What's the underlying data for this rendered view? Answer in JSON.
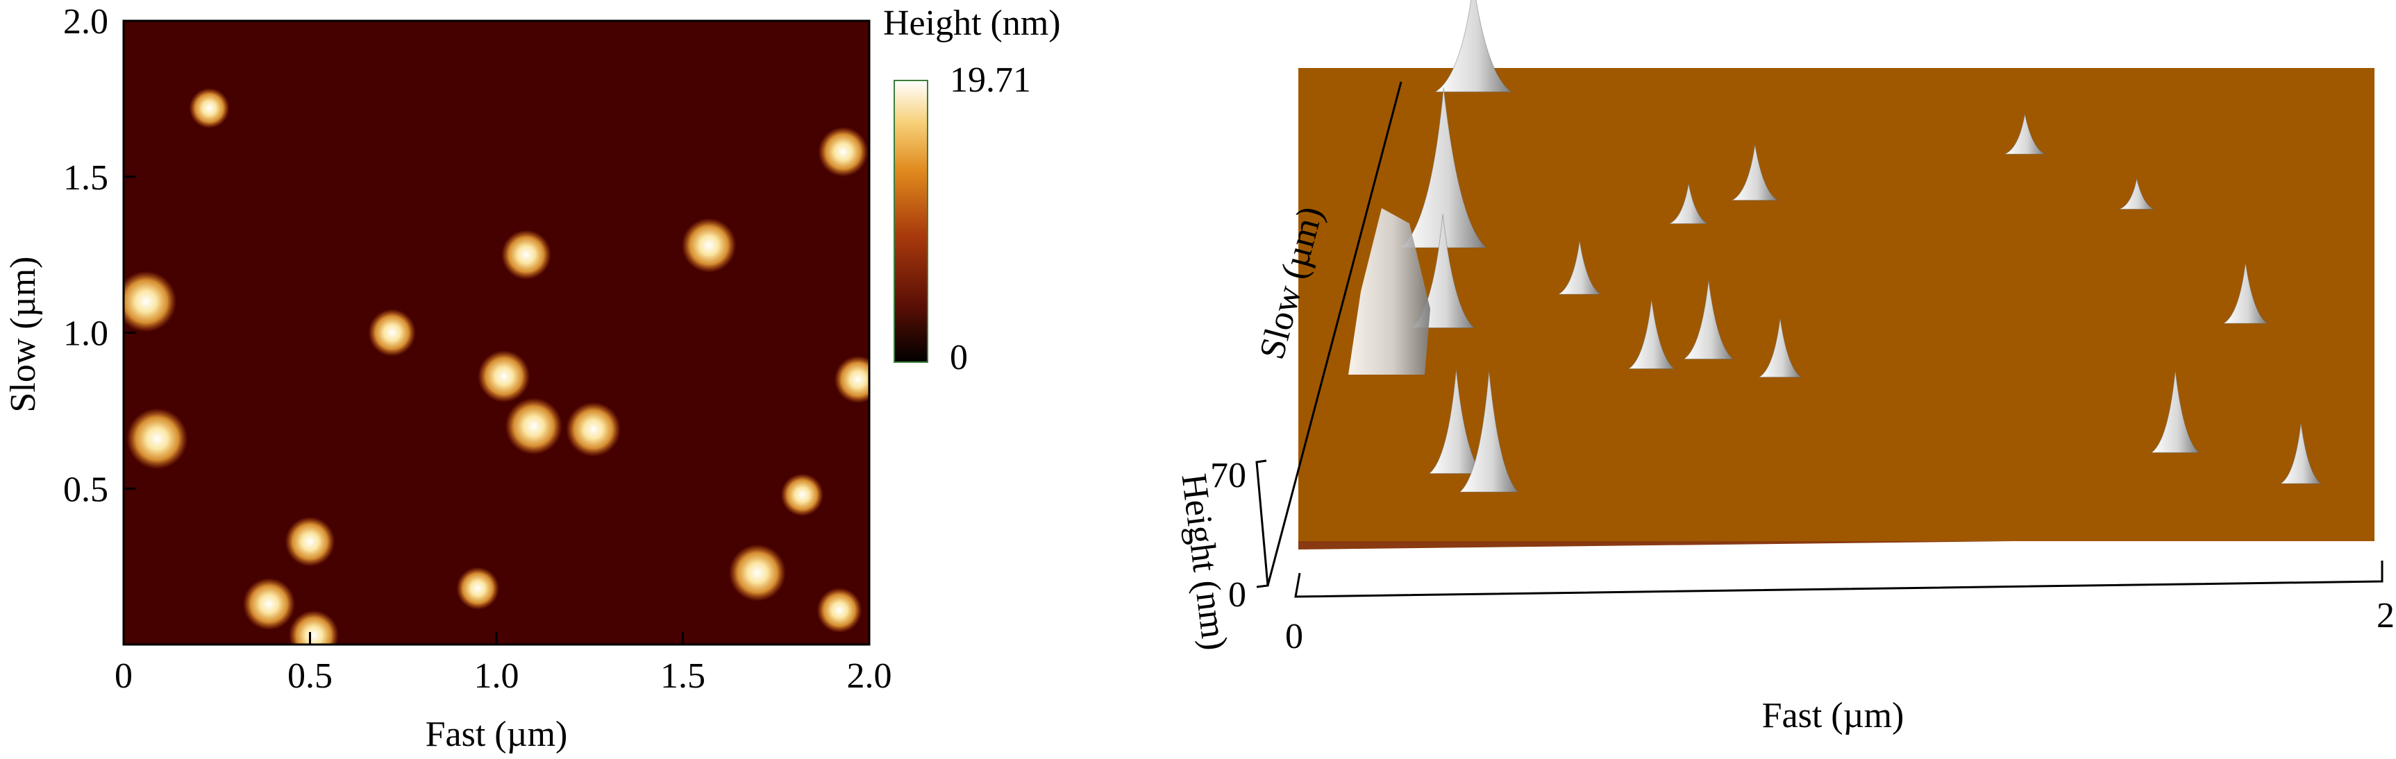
{
  "chart_data": [
    {
      "type": "heatmap",
      "xlabel": "Fast (µm)",
      "ylabel": "Slow (µm)",
      "xlim": [
        0,
        2.0
      ],
      "ylim": [
        0,
        2.0
      ],
      "x_ticks": [
        "0",
        "0.5",
        "1.0",
        "1.5",
        "2.0"
      ],
      "x_tick_values": [
        0,
        0.5,
        1.0,
        1.5,
        2.0
      ],
      "y_ticks": [
        "0.5",
        "1.0",
        "1.5",
        "2.0"
      ],
      "y_tick_values": [
        0.5,
        1.0,
        1.5,
        2.0
      ],
      "colorbar": {
        "label": "Height (nm)",
        "max": 19.71,
        "max_label": "19.71",
        "min": 0,
        "min_label": "0",
        "colors": [
          "#000000",
          "#5a0f05",
          "#a83a0c",
          "#e08a1e",
          "#f7d078",
          "#ffffff"
        ]
      },
      "features": [
        {
          "x": 0.06,
          "y": 1.1,
          "height": 19.7
        },
        {
          "x": 0.09,
          "y": 0.66,
          "height": 19.7
        },
        {
          "x": 1.57,
          "y": 1.28,
          "height": 17
        },
        {
          "x": 1.02,
          "y": 0.86,
          "height": 16
        },
        {
          "x": 1.1,
          "y": 0.7,
          "height": 18
        },
        {
          "x": 1.26,
          "y": 0.69,
          "height": 17
        },
        {
          "x": 1.7,
          "y": 0.23,
          "height": 18
        },
        {
          "x": 0.95,
          "y": 0.18,
          "height": 12
        },
        {
          "x": 0.5,
          "y": 0.33,
          "height": 15
        },
        {
          "x": 0.39,
          "y": 0.13,
          "height": 16
        },
        {
          "x": 0.72,
          "y": 1.0,
          "height": 14
        },
        {
          "x": 1.08,
          "y": 1.25,
          "height": 15
        },
        {
          "x": 1.93,
          "y": 1.58,
          "height": 15
        },
        {
          "x": 1.97,
          "y": 0.85,
          "height": 14
        },
        {
          "x": 1.82,
          "y": 0.48,
          "height": 12
        },
        {
          "x": 1.92,
          "y": 0.11,
          "height": 13
        },
        {
          "x": 0.51,
          "y": 0.03,
          "height": 15
        },
        {
          "x": 0.23,
          "y": 1.72,
          "height": 11
        }
      ]
    },
    {
      "type": "surface3d",
      "xlabel": "Fast (µm)",
      "zlabel": "Height (nm)",
      "depthlabel": "Slow (µm)",
      "x_ticks": [
        "0",
        "2"
      ],
      "xlim": [
        0,
        2
      ],
      "z_ticks": [
        "0",
        "70"
      ],
      "zlim": [
        0,
        70
      ],
      "peaks": [
        {
          "x": 0.12,
          "y": 0.95,
          "height": 60
        },
        {
          "x": 0.14,
          "y": 0.62,
          "height": 70
        },
        {
          "x": 0.18,
          "y": 0.45,
          "height": 45
        },
        {
          "x": 0.27,
          "y": 0.14,
          "height": 35
        },
        {
          "x": 0.34,
          "y": 0.1,
          "height": 40
        },
        {
          "x": 0.47,
          "y": 0.52,
          "height": 22
        },
        {
          "x": 0.64,
          "y": 0.36,
          "height": 26
        },
        {
          "x": 0.76,
          "y": 0.38,
          "height": 30
        },
        {
          "x": 0.91,
          "y": 0.34,
          "height": 22
        },
        {
          "x": 0.71,
          "y": 0.67,
          "height": 18
        },
        {
          "x": 0.87,
          "y": 0.72,
          "height": 26
        },
        {
          "x": 1.56,
          "y": 0.82,
          "height": 20
        },
        {
          "x": 1.79,
          "y": 0.7,
          "height": 14
        },
        {
          "x": 1.68,
          "y": 0.17,
          "height": 28
        },
        {
          "x": 1.9,
          "y": 0.1,
          "height": 20
        },
        {
          "x": 1.93,
          "y": 0.45,
          "height": 24
        }
      ]
    }
  ]
}
